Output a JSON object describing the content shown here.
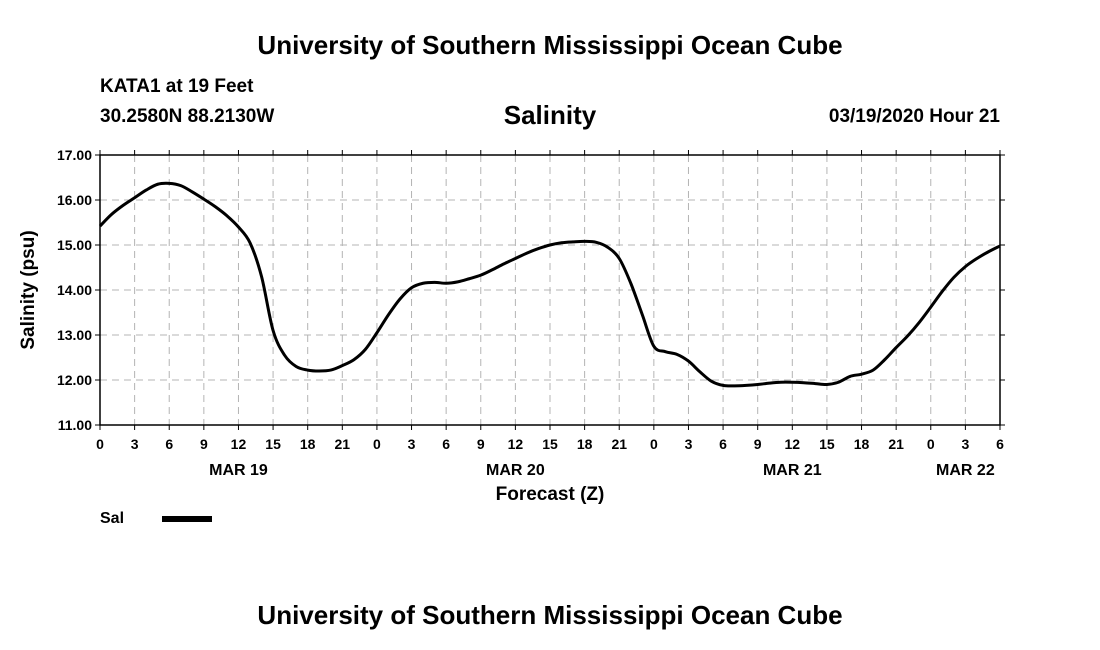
{
  "header": {
    "title": "University of Southern Mississippi Ocean Cube",
    "station": "KATA1 at 19 Feet",
    "coordinates": "30.2580N 88.2130W",
    "datetime": "03/19/2020 Hour 21"
  },
  "footer": {
    "title": "University of Southern Mississippi Ocean Cube"
  },
  "legend": {
    "label": "Sal",
    "color": "#000000"
  },
  "chart_data": {
    "type": "line",
    "title": "Salinity",
    "xlabel": "Forecast (Z)",
    "ylabel": "Salinity (psu)",
    "xlim": [
      0,
      78
    ],
    "ylim": [
      11.0,
      17.0
    ],
    "grid": true,
    "yticks": [
      "11.00",
      "12.00",
      "13.00",
      "14.00",
      "15.00",
      "16.00",
      "17.00"
    ],
    "ytick_values": [
      11,
      12,
      13,
      14,
      15,
      16,
      17
    ],
    "xticks": [
      "0",
      "3",
      "6",
      "9",
      "12",
      "15",
      "18",
      "21",
      "0",
      "3",
      "6",
      "9",
      "12",
      "15",
      "18",
      "21",
      "0",
      "3",
      "6",
      "9",
      "12",
      "15",
      "18",
      "21",
      "0",
      "3",
      "6"
    ],
    "date_labels": [
      {
        "label": "MAR 19",
        "x": 12
      },
      {
        "label": "MAR 20",
        "x": 36
      },
      {
        "label": "MAR 21",
        "x": 60
      },
      {
        "label": "MAR 22",
        "x": 75
      }
    ],
    "series": [
      {
        "name": "Sal",
        "color": "#000000",
        "x": [
          0,
          1,
          2,
          3,
          4,
          5,
          6,
          7,
          8,
          9,
          10,
          11,
          12,
          13,
          14,
          15,
          16,
          17,
          18,
          19,
          20,
          21,
          22,
          23,
          24,
          25,
          26,
          27,
          28,
          29,
          30,
          31,
          32,
          33,
          34,
          35,
          36,
          37,
          38,
          39,
          40,
          41,
          42,
          43,
          44,
          45,
          46,
          47,
          48,
          49,
          50,
          51,
          52,
          53,
          54,
          55,
          56,
          57,
          58,
          59,
          60,
          61,
          62,
          63,
          64,
          65,
          66,
          67,
          68,
          69,
          70,
          71,
          72,
          73,
          74,
          75,
          76,
          77,
          78
        ],
        "values": [
          15.42,
          15.68,
          15.88,
          16.05,
          16.22,
          16.35,
          16.37,
          16.32,
          16.18,
          16.02,
          15.85,
          15.65,
          15.4,
          15.05,
          14.3,
          13.1,
          12.55,
          12.3,
          12.22,
          12.2,
          12.22,
          12.32,
          12.45,
          12.68,
          13.05,
          13.45,
          13.8,
          14.05,
          14.15,
          14.17,
          14.15,
          14.18,
          14.25,
          14.33,
          14.45,
          14.58,
          14.7,
          14.82,
          14.92,
          15.0,
          15.05,
          15.07,
          15.08,
          15.06,
          14.95,
          14.7,
          14.15,
          13.45,
          12.75,
          12.63,
          12.57,
          12.42,
          12.18,
          11.97,
          11.88,
          11.87,
          11.88,
          11.9,
          11.93,
          11.95,
          11.95,
          11.94,
          11.92,
          11.9,
          11.95,
          12.08,
          12.13,
          12.22,
          12.45,
          12.72,
          12.98,
          13.28,
          13.62,
          13.97,
          14.28,
          14.52,
          14.7,
          14.85,
          14.98
        ]
      }
    ]
  }
}
